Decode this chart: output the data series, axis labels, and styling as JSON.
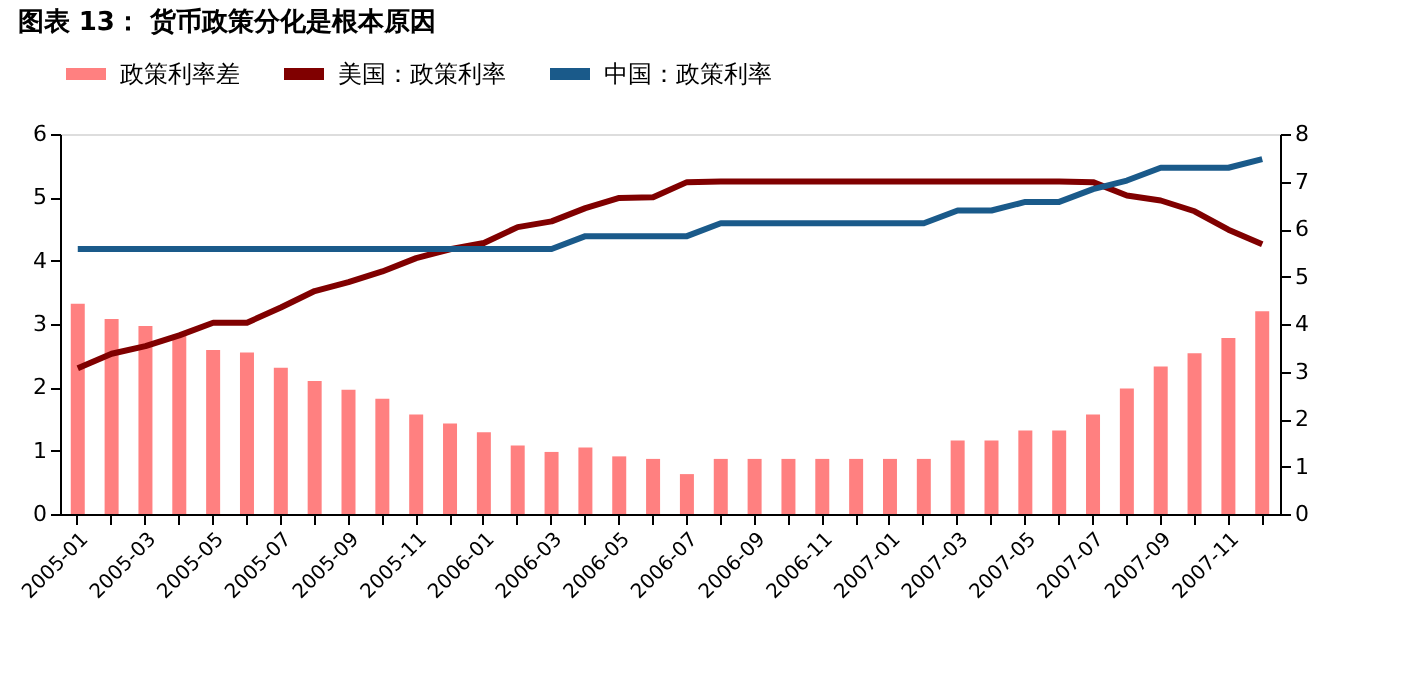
{
  "chart_data": {
    "type": "bar",
    "title": "图表 13： 货币政策分化是根本原因",
    "categories": [
      "2005-01",
      null,
      "2005-03",
      null,
      "2005-05",
      null,
      "2005-07",
      null,
      "2005-09",
      null,
      "2005-11",
      null,
      "2006-01",
      null,
      "2006-03",
      null,
      "2006-05",
      null,
      "2006-07",
      null,
      "2006-09",
      null,
      "2006-11",
      null,
      "2007-01",
      null,
      "2007-03",
      null,
      "2007-05",
      null,
      "2007-07",
      null,
      "2007-09",
      null,
      "2007-11",
      null
    ],
    "series": [
      {
        "name": "政策利率差",
        "color": "#ff8080",
        "values": [
          3.32,
          3.08,
          2.97,
          2.83,
          2.59,
          2.55,
          2.31,
          2.1,
          1.96,
          1.82,
          1.57,
          1.43,
          1.29,
          1.08,
          0.98,
          1.05,
          0.91,
          0.87,
          0.63,
          0.87,
          0.87,
          0.87,
          0.87,
          0.87,
          0.87,
          0.87,
          1.16,
          1.16,
          1.32,
          1.32,
          1.57,
          1.98,
          2.33,
          2.54,
          2.78,
          3.2
        ]
      },
      {
        "name": "美国：政策利率",
        "type": "line",
        "color": "#800000",
        "values": [
          2.3,
          2.53,
          2.65,
          2.82,
          3.02,
          3.02,
          3.26,
          3.52,
          3.66,
          3.83,
          4.04,
          4.18,
          4.28,
          4.53,
          4.62,
          4.83,
          4.99,
          5.0,
          5.24,
          5.25,
          5.25,
          5.25,
          5.25,
          5.25,
          5.25,
          5.25,
          5.25,
          5.25,
          5.25,
          5.25,
          5.24,
          5.03,
          4.95,
          4.78,
          4.49,
          4.26
        ]
      },
      {
        "name": "中国：政策利率",
        "type": "line",
        "axis": "y2",
        "color": "#1a5a8a",
        "values": [
          5.58,
          5.58,
          5.58,
          5.58,
          5.58,
          5.58,
          5.58,
          5.58,
          5.58,
          5.58,
          5.58,
          5.58,
          5.58,
          5.58,
          5.58,
          5.85,
          5.85,
          5.85,
          5.85,
          6.12,
          6.12,
          6.12,
          6.12,
          6.12,
          6.12,
          6.12,
          6.39,
          6.39,
          6.57,
          6.57,
          6.84,
          7.02,
          7.29,
          7.29,
          7.29,
          7.47
        ]
      }
    ],
    "ylim": [
      0,
      6
    ],
    "yticks": [
      0,
      1,
      2,
      3,
      4,
      5,
      6
    ],
    "y2lim": [
      0,
      8
    ],
    "y2ticks": [
      0,
      1,
      2,
      3,
      4,
      5,
      6,
      7,
      8
    ],
    "grid": false,
    "legend": "top"
  }
}
